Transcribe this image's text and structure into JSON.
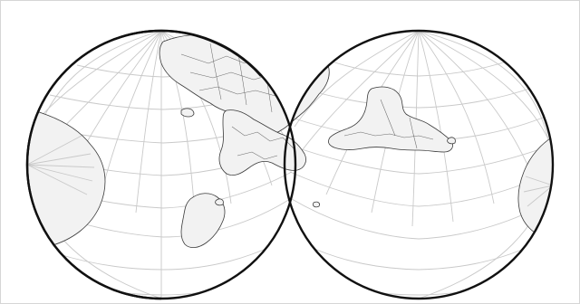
{
  "map": {
    "style": "interrupted two-lobe world projection with graticule",
    "colors": {
      "background": "#ffffff",
      "land_fill": "#f2f2f2",
      "coastline": "#3a3a3a",
      "graticule": "#c9c9c9",
      "outline": "#111111",
      "frame": "#d6d6d6"
    }
  }
}
